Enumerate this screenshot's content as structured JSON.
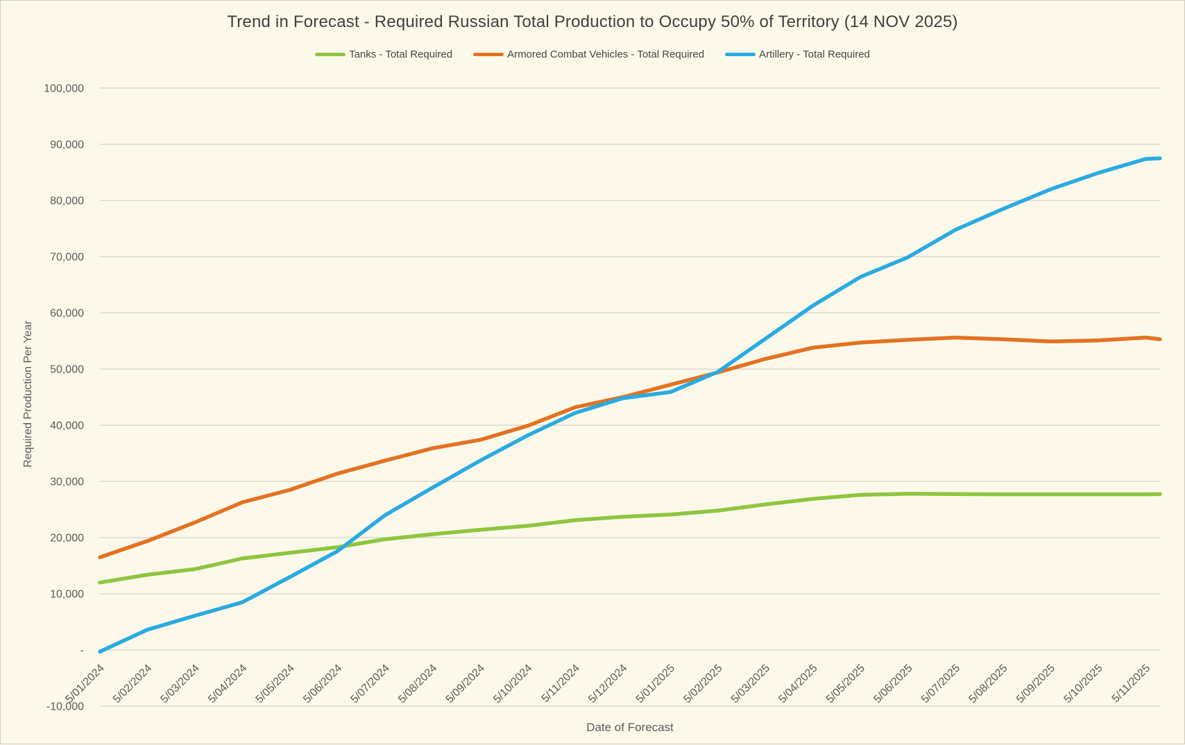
{
  "chart_data": {
    "type": "line",
    "title": "Trend in Forecast - Required Russian Total Production to Occupy 50% of Territory (14 NOV 2025)",
    "xlabel": "Date of Forecast",
    "ylabel": "Required Production Per Year",
    "ylim": [
      -10000,
      100000
    ],
    "ytick_step": 10000,
    "zero_tick_label": "-",
    "grid": true,
    "legend_position": "top",
    "background_color": "#FDF9EA",
    "gridline_color": "#DAD7CC",
    "text_color": "#595959",
    "title_color": "#3F3F3F",
    "categories": [
      "5/01/2024",
      "5/02/2024",
      "5/03/2024",
      "5/04/2024",
      "5/05/2024",
      "5/06/2024",
      "5/07/2024",
      "5/08/2024",
      "5/09/2024",
      "5/10/2024",
      "5/11/2024",
      "5/12/2024",
      "5/01/2025",
      "5/02/2025",
      "5/03/2025",
      "5/04/2025",
      "5/05/2025",
      "5/06/2025",
      "5/07/2025",
      "5/08/2025",
      "5/09/2025",
      "5/10/2025",
      "5/11/2025"
    ],
    "x_positions": [
      0,
      1,
      2,
      3,
      4,
      5,
      6,
      7,
      8,
      9,
      10,
      11,
      12,
      13,
      14,
      15,
      16,
      17,
      18,
      19,
      20,
      21,
      22,
      22.3
    ],
    "series": [
      {
        "id": "tanks",
        "name": "Tanks - Total Required",
        "color": "#8DC63F",
        "values": [
          12000,
          13400,
          14400,
          16300,
          17300,
          18300,
          19700,
          20600,
          21400,
          22100,
          23100,
          23700,
          24100,
          24800,
          25900,
          26900,
          27600,
          27800,
          27750,
          27700,
          27700,
          27700,
          27700,
          27750
        ]
      },
      {
        "id": "acv",
        "name": "Armored Combat Vehicles - Total Required",
        "color": "#E37222",
        "values": [
          16500,
          19400,
          22700,
          26300,
          28500,
          31400,
          33700,
          35900,
          37400,
          39900,
          43200,
          45000,
          47200,
          49400,
          51800,
          53800,
          54700,
          55200,
          55600,
          55300,
          54900,
          55100,
          55600,
          55300
        ]
      },
      {
        "id": "artillery",
        "name": "Artillery - Total Required",
        "color": "#29ABE2",
        "values": [
          -300,
          3600,
          6100,
          8500,
          13000,
          17600,
          24000,
          28900,
          33700,
          38200,
          42200,
          44800,
          45900,
          49500,
          55400,
          61300,
          66400,
          69900,
          74800,
          78500,
          82000,
          84900,
          87400,
          87500
        ]
      }
    ]
  }
}
